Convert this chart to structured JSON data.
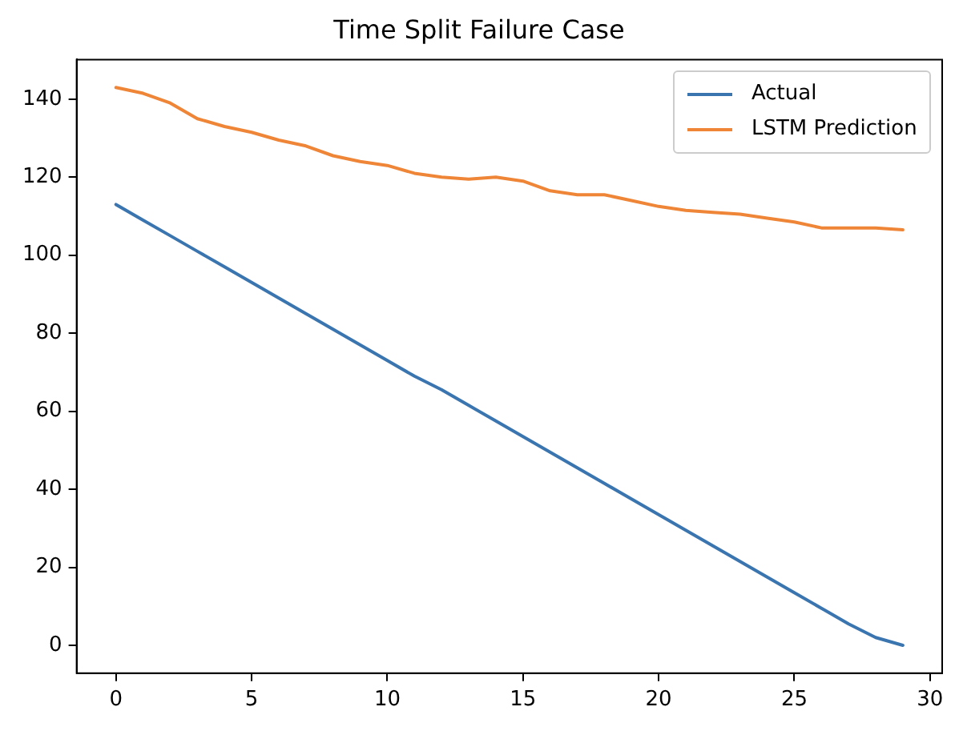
{
  "chart_data": {
    "type": "line",
    "title": "Time Split Failure Case",
    "x": [
      0,
      1,
      2,
      3,
      4,
      5,
      6,
      7,
      8,
      9,
      10,
      11,
      12,
      13,
      14,
      15,
      16,
      17,
      18,
      19,
      20,
      21,
      22,
      23,
      24,
      25,
      26,
      27,
      28,
      29
    ],
    "series": [
      {
        "name": "Actual",
        "color": "#3a75b0",
        "values": [
          113,
          109,
          105,
          101,
          97,
          93,
          89,
          85,
          81,
          77,
          73,
          69,
          65.5,
          61.5,
          57.5,
          53.5,
          49.5,
          45.5,
          41.5,
          37.5,
          33.5,
          29.5,
          25.5,
          21.5,
          17.5,
          13.5,
          9.5,
          5.5,
          2,
          0
        ]
      },
      {
        "name": "LSTM Prediction",
        "color": "#ef8536",
        "values": [
          143,
          141.5,
          139,
          135,
          133,
          131.5,
          129.5,
          128,
          125.5,
          124,
          123,
          121,
          120,
          119.5,
          120,
          119,
          116.5,
          115.5,
          115.5,
          114,
          112.5,
          111.5,
          111,
          110.5,
          109.5,
          108.5,
          107,
          107,
          107,
          106.5
        ]
      }
    ],
    "xlim": [
      -1.45,
      30.45
    ],
    "xticks": [
      0,
      5,
      10,
      15,
      20,
      25,
      30
    ],
    "ylim": [
      -7.15,
      150.15
    ],
    "yticks": [
      0,
      20,
      40,
      60,
      80,
      100,
      120,
      140
    ],
    "legend": "top right",
    "grid": false
  }
}
